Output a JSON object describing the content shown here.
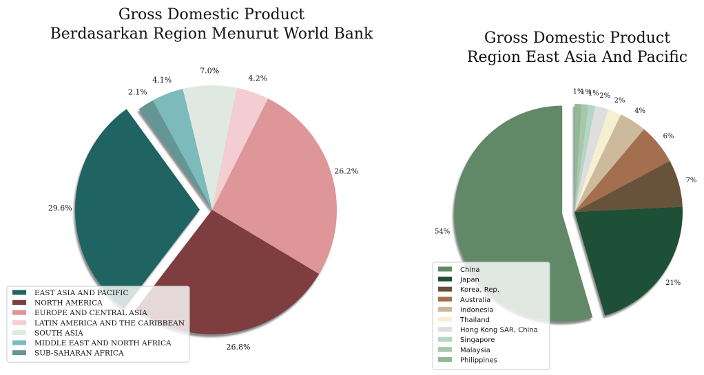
{
  "chart_data": [
    {
      "type": "pie",
      "title": [
        "Gross Domestic Product",
        "Berdasarkan Region Menurut World Bank"
      ],
      "categories": [
        "EAST ASIA AND PACIFIC",
        "NORTH AMERICA",
        "EUROPE AND CENTRAL ASIA",
        "LATIN AMERICA AND THE CARIBBEAN",
        "SOUTH ASIA",
        "MIDDLE EAST AND NORTH AFRICA",
        "SUB-SAHARAN AFRICA"
      ],
      "values": [
        29.6,
        26.8,
        26.2,
        4.2,
        7.0,
        4.1,
        2.1
      ],
      "labels": [
        "29.6%",
        "26.8%",
        "26.2%",
        "4.2%",
        "7.0%",
        "4.1%",
        "2.1%"
      ],
      "colors": [
        "#1f6462",
        "#7e3e40",
        "#de9698",
        "#f3cdd1",
        "#dfe9e1",
        "#7dbabb",
        "#659696"
      ],
      "exploded": "EAST ASIA AND PACIFIC",
      "shadow": true,
      "legend_position": "lower-left"
    },
    {
      "type": "pie",
      "title": [
        "Gross Domestic Product",
        "Region East Asia And Pacific"
      ],
      "categories": [
        "China",
        "Japan",
        "Korea, Rep.",
        "Australia",
        "Indonesia",
        "Thailand",
        "Hong Kong SAR, China",
        "Singapore",
        "Malaysia",
        "Philippines"
      ],
      "values": [
        54,
        21,
        7,
        6,
        4,
        2,
        2,
        1,
        1,
        1
      ],
      "labels": [
        "54%",
        "21%",
        "7%",
        "6%",
        "4%",
        "2%",
        "2%",
        "1%",
        "1%",
        "1%"
      ],
      "colors": [
        "#628967",
        "#1e4f37",
        "#67533b",
        "#a46f4f",
        "#cdb99b",
        "#f6f0d3",
        "#dedede",
        "#b4d7c4",
        "#a6c7a8",
        "#94b896"
      ],
      "exploded": "China",
      "shadow": true,
      "legend_position": "lower-left"
    }
  ]
}
